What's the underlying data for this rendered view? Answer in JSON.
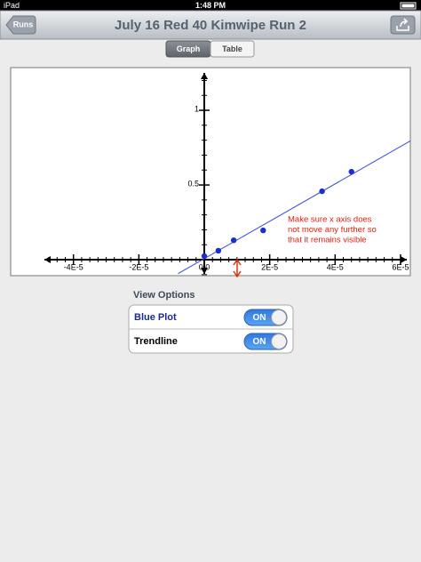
{
  "status_bar": {
    "device": "iPad",
    "time": "1:48 PM"
  },
  "nav_bar": {
    "back": "Runs",
    "title": "July 16 Red 40 Kimwipe Run 2"
  },
  "segments": [
    "Graph",
    "Table"
  ],
  "chart_data": {
    "type": "scatter",
    "xlim": [
      -5.92e-05,
      6.3e-05
    ],
    "ylim": [
      -0.107,
      1.286
    ],
    "xticks": [
      {
        "value": -4e-05,
        "label": "-4E-5"
      },
      {
        "value": -2e-05,
        "label": "-2E-5"
      },
      {
        "value": 0,
        "label": "0.0"
      },
      {
        "value": 2e-05,
        "label": "2E-5"
      },
      {
        "value": 4e-05,
        "label": "4E-5"
      },
      {
        "value": 6e-05,
        "label": "6E-5"
      }
    ],
    "yticks": [
      0.5,
      1
    ],
    "series": [
      {
        "color": "#1a2fd0",
        "x": [
          0,
          4.3e-06,
          9e-06,
          1.8e-05,
          3.6e-05,
          4.5e-05
        ],
        "values": [
          0.024,
          0.06,
          0.13,
          0.196,
          0.458,
          0.589
        ]
      },
      {
        "type": "line",
        "color": "#3848e0",
        "x": [
          -8e-06,
          6.3e-05
        ],
        "values": [
          -0.093,
          0.795
        ]
      }
    ],
    "annotation": [
      "Make sure x axis does",
      "not move any further so",
      "that it remains visible"
    ]
  },
  "view_options": {
    "title": "View Options",
    "rows": [
      {
        "label": "Blue Plot",
        "state": "ON"
      },
      {
        "label": "Trendline",
        "state": "ON"
      }
    ]
  }
}
